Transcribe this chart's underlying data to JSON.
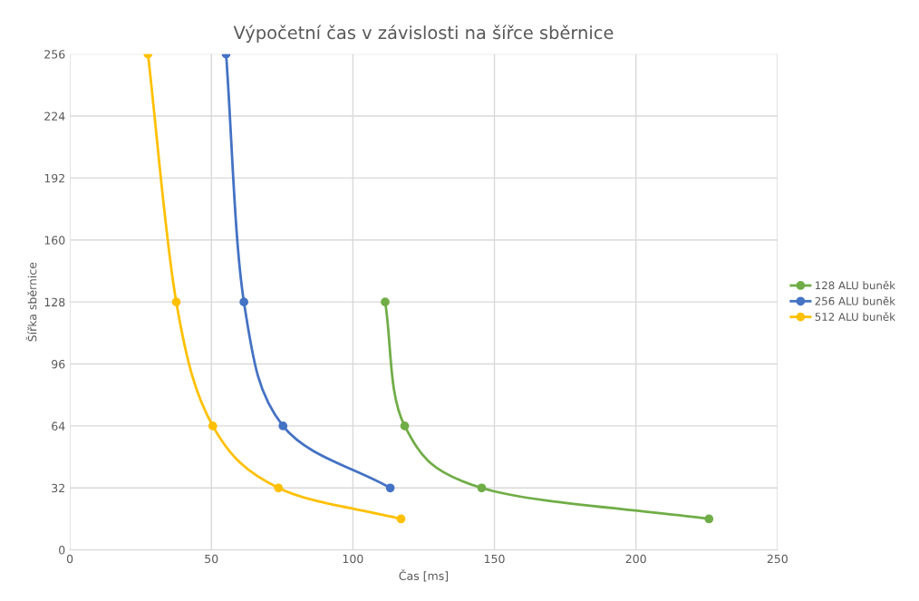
{
  "chart_data": {
    "type": "line",
    "title": "Výpočetní čas v závislosti na šířce sběrnice",
    "xlabel": "Čas [ms]",
    "ylabel": "Šířka sběrnice",
    "series": [
      {
        "name": "128 ALU buněk",
        "color": "#70ad47",
        "x": [
          111.4,
          118.3,
          145.5,
          225.8
        ],
        "values": [
          128,
          64,
          32,
          16
        ]
      },
      {
        "name": "256 ALU buněk",
        "color": "#4472c4",
        "x": [
          55.2,
          61.5,
          75.3,
          113.2
        ],
        "values": [
          256,
          128,
          64,
          32
        ]
      },
      {
        "name": "512 ALU buněk",
        "color": "#ffc000",
        "x": [
          27.6,
          37.6,
          50.5,
          73.7,
          117
        ],
        "values": [
          256,
          128,
          64,
          32,
          16
        ]
      }
    ],
    "xlim": [
      0,
      250
    ],
    "xticks": [
      0,
      50,
      100,
      150,
      200,
      250
    ],
    "ylim": [
      0,
      256
    ],
    "yticks": [
      0,
      32,
      64,
      96,
      128,
      160,
      192,
      224,
      256
    ],
    "grid": true,
    "legend": "right",
    "marker": "circle",
    "line_style": "solid"
  }
}
